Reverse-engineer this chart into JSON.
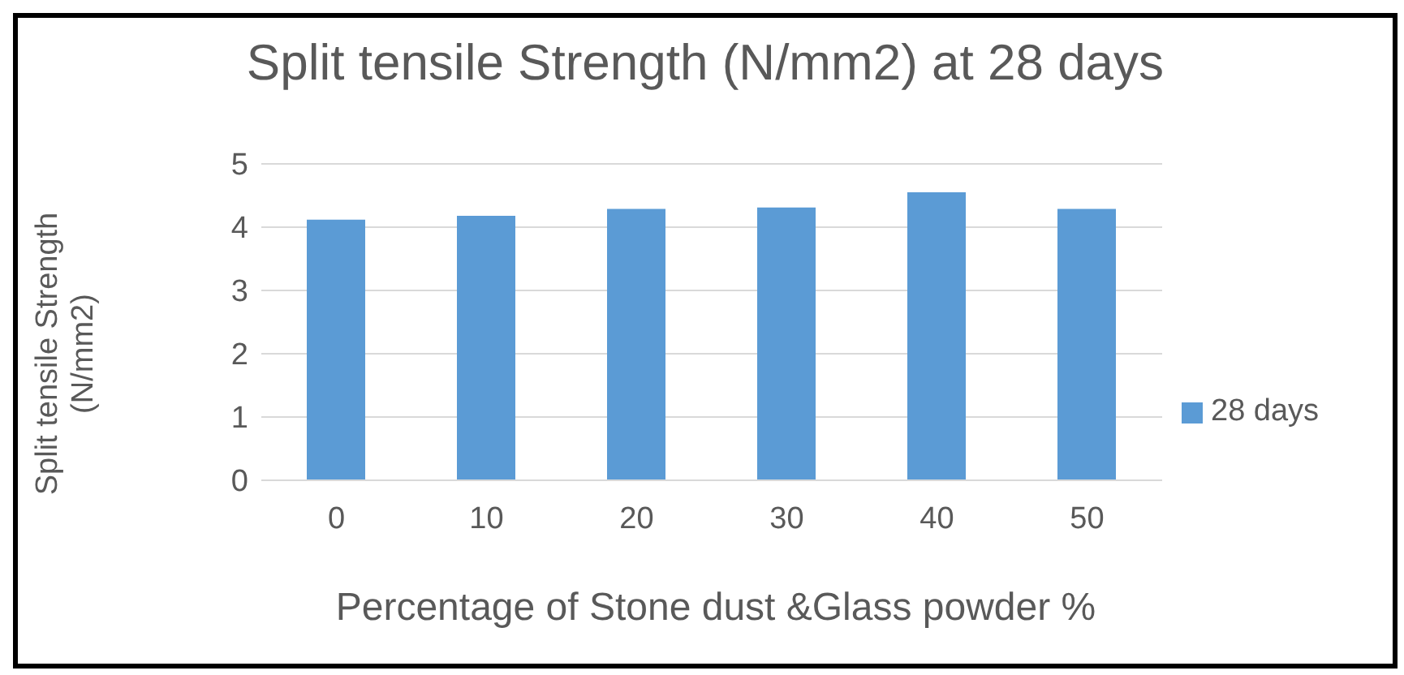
{
  "chart_data": {
    "type": "bar",
    "title": "Split tensile Strength (N/mm2) at 28 days",
    "xlabel": "Percentage of  Stone dust &Glass powder %",
    "ylabel": "Split tensile Strength (N/mm2)",
    "categories": [
      "0",
      "10",
      "20",
      "30",
      "40",
      "50"
    ],
    "series": [
      {
        "name": "28 days",
        "color": "#5b9bd5",
        "values": [
          4.12,
          4.18,
          4.29,
          4.31,
          4.55,
          4.29
        ]
      }
    ],
    "ylim": [
      0,
      5
    ],
    "yticks": [
      0,
      1,
      2,
      3,
      4,
      5
    ],
    "grid": "y",
    "legend": "right"
  }
}
